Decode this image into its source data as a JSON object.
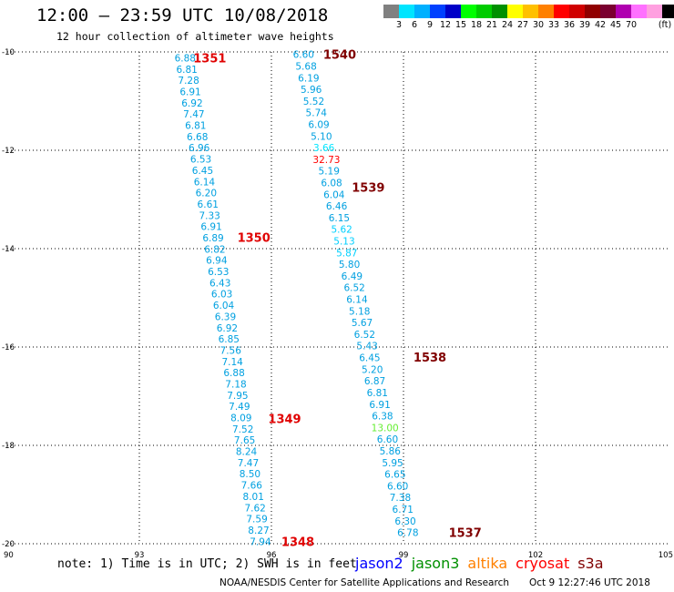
{
  "header": {
    "title": "12:00 – 23:59 UTC 10/08/2018",
    "subtitle": "12 hour collection of altimeter wave heights"
  },
  "legend": {
    "unit": "(ft)",
    "colors": [
      "#808080",
      "#00e5ff",
      "#00b0ff",
      "#0040ff",
      "#0000c8",
      "#00ff00",
      "#00cc00",
      "#009000",
      "#ffff00",
      "#ffc000",
      "#ff8000",
      "#ff0000",
      "#d00000",
      "#900000",
      "#7a0030",
      "#b000b0",
      "#ff70ff",
      "#ffa0e0",
      "#000000"
    ],
    "labels": [
      "3",
      "6",
      "9",
      "12",
      "15",
      "18",
      "21",
      "24",
      "27",
      "30",
      "33",
      "36",
      "39",
      "42",
      "45",
      "70"
    ]
  },
  "footer": {
    "note": "note: 1) Time is in UTC; 2) SWH is in feet",
    "satellites": [
      {
        "name": "jason2",
        "color": "#0000ff"
      },
      {
        "name": "jason3",
        "color": "#009000"
      },
      {
        "name": "altika",
        "color": "#ff8000"
      },
      {
        "name": "cryosat",
        "color": "#ff0000"
      },
      {
        "name": "s3a",
        "color": "#800000"
      }
    ],
    "credit": "NOAA/NESDIS Center for Satellite Applications and Research",
    "timestamp": "Oct  9 12:27:46 UTC 2018"
  },
  "chart_data": {
    "type": "scatter",
    "title": "12:00 – 23:59 UTC 10/08/2018",
    "xlim": [
      90,
      105
    ],
    "ylim": [
      -20,
      -10
    ],
    "xticks": [
      "90",
      "93",
      "96",
      "99",
      "102",
      "105"
    ],
    "yticks": [
      "-10",
      "-12",
      "-14",
      "-16",
      "-18",
      "-20"
    ],
    "grid": true,
    "tracks": [
      {
        "id": "left",
        "color": "#00a0e0",
        "lon_start": 94.04,
        "lat_start": -10.12,
        "lon_end": 95.75,
        "lat_end": -19.95,
        "values": [
          "6.88",
          "6.81",
          "7.28",
          "6.91",
          "6.92",
          "7.47",
          "6.81",
          "6.68",
          "6.96",
          "6.53",
          "6.45",
          "6.14",
          "6.20",
          "6.61",
          "7.33",
          "6.91",
          "6.89",
          "6.82",
          "6.94",
          "6.53",
          "6.43",
          "6.03",
          "6.04",
          "6.39",
          "6.92",
          "6.85",
          "7.56",
          "7.14",
          "6.88",
          "7.18",
          "7.95",
          "7.49",
          "8.09",
          "7.52",
          "7.65",
          "8.24",
          "7.47",
          "8.50",
          "7.66",
          "8.01",
          "7.62",
          "7.59",
          "8.27",
          "7.94"
        ]
      },
      {
        "id": "right",
        "color": "#00a0e0",
        "lon_start": 96.73,
        "lat_start": -10.05,
        "lon_end": 99.1,
        "lat_end": -19.77,
        "values": [
          "6.60",
          "5.68",
          "6.19",
          "5.96",
          "5.52",
          "5.74",
          "6.09",
          "5.10",
          "3.66",
          "32.73",
          "5.19",
          "6.08",
          "6.04",
          "6.46",
          "6.15",
          "5.62",
          "5.13",
          "5.87",
          "5.80",
          "6.49",
          "6.52",
          "6.14",
          "5.18",
          "5.67",
          "6.52",
          "5.43",
          "6.45",
          "5.20",
          "6.87",
          "6.81",
          "6.91",
          "6.38",
          "13.00",
          "6.60",
          "5.86",
          "5.95",
          "6.65",
          "6.60",
          "7.38",
          "6.71",
          "6.30",
          "6.78"
        ],
        "special_colors": {
          "3.66": "#00e5ff",
          "32.73": "#ff0000",
          "13.00": "#66ee33",
          "5.62": "#00d0ff",
          "5.13": "#00d0ff",
          "5.87": "#00d0ff",
          "6.60": "#00a0e0"
        }
      }
    ],
    "orbit_labels": [
      {
        "text": "1351",
        "lon": 94.6,
        "lat": -10.12,
        "color": "#e00000"
      },
      {
        "text": "1350",
        "lon": 95.6,
        "lat": -13.77,
        "color": "#e00000"
      },
      {
        "text": "1349",
        "lon": 96.3,
        "lat": -17.45,
        "color": "#e00000"
      },
      {
        "text": "1348",
        "lon": 96.6,
        "lat": -19.95,
        "color": "#e00000"
      },
      {
        "text": "1540",
        "lon": 97.55,
        "lat": -10.05,
        "color": "#800000"
      },
      {
        "text": "1539",
        "lon": 98.2,
        "lat": -12.75,
        "color": "#800000"
      },
      {
        "text": "1538",
        "lon": 99.6,
        "lat": -16.2,
        "color": "#800000"
      },
      {
        "text": "1537",
        "lon": 100.4,
        "lat": -19.77,
        "color": "#800000"
      }
    ]
  }
}
